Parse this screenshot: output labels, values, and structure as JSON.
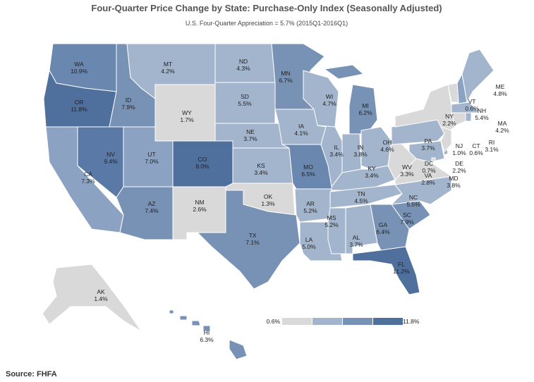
{
  "header": {
    "title": "Four-Quarter Price Change by State: Purchase-Only Index (Seasonally Adjusted)",
    "subtitle": "U.S. Four-Quarter Appreciation = 5.7% (2015Q1-2016Q1)"
  },
  "states": [
    {
      "abbr": "WA",
      "change": "10.9%",
      "color": "#6a87b0"
    },
    {
      "abbr": "OR",
      "change": "11.8%",
      "color": "#4f6f9c"
    },
    {
      "abbr": "CA",
      "change": "7.3%",
      "color": "#8ba2c2"
    },
    {
      "abbr": "NV",
      "change": "9.4%",
      "color": "#5a79a6"
    },
    {
      "abbr": "ID",
      "change": "7.9%",
      "color": "#7892b5"
    },
    {
      "abbr": "MT",
      "change": "4.2%",
      "color": "#a3b5cc"
    },
    {
      "abbr": "WY",
      "change": "1.7%",
      "color": "#d9d9d9"
    },
    {
      "abbr": "UT",
      "change": "7.0%",
      "color": "#8ba2c2"
    },
    {
      "abbr": "CO",
      "change": "8.0%",
      "color": "#4f6f9c"
    },
    {
      "abbr": "AZ",
      "change": "7.4%",
      "color": "#7892b5"
    },
    {
      "abbr": "NM",
      "change": "2.6%",
      "color": "#d9d9d9"
    },
    {
      "abbr": "ND",
      "change": "4.3%",
      "color": "#a3b5cc"
    },
    {
      "abbr": "SD",
      "change": "5.5%",
      "color": "#a3b5cc"
    },
    {
      "abbr": "NE",
      "change": "3.7%",
      "color": "#a3b5cc"
    },
    {
      "abbr": "KS",
      "change": "3.4%",
      "color": "#a3b5cc"
    },
    {
      "abbr": "OK",
      "change": "1.3%",
      "color": "#d9d9d9"
    },
    {
      "abbr": "TX",
      "change": "7.1%",
      "color": "#7892b5"
    },
    {
      "abbr": "MN",
      "change": "6.7%",
      "color": "#7892b5"
    },
    {
      "abbr": "IA",
      "change": "4.1%",
      "color": "#a3b5cc"
    },
    {
      "abbr": "MO",
      "change": "6.5%",
      "color": "#6a87b0"
    },
    {
      "abbr": "AR",
      "change": "5.2%",
      "color": "#a3b5cc"
    },
    {
      "abbr": "LA",
      "change": "5.0%",
      "color": "#a3b5cc"
    },
    {
      "abbr": "WI",
      "change": "4.7%",
      "color": "#a3b5cc"
    },
    {
      "abbr": "MI",
      "change": "6.2%",
      "color": "#7892b5"
    },
    {
      "abbr": "IL",
      "change": "3.4%",
      "color": "#a3b5cc"
    },
    {
      "abbr": "IN",
      "change": "3.8%",
      "color": "#a3b5cc"
    },
    {
      "abbr": "OH",
      "change": "4.6%",
      "color": "#a3b5cc"
    },
    {
      "abbr": "KY",
      "change": "3.4%",
      "color": "#a3b5cc"
    },
    {
      "abbr": "TN",
      "change": "4.5%",
      "color": "#a3b5cc"
    },
    {
      "abbr": "MS",
      "change": "5.2%",
      "color": "#a3b5cc"
    },
    {
      "abbr": "AL",
      "change": "3.7%",
      "color": "#a3b5cc"
    },
    {
      "abbr": "GA",
      "change": "6.4%",
      "color": "#7892b5"
    },
    {
      "abbr": "FL",
      "change": "11.2%",
      "color": "#4f6f9c"
    },
    {
      "abbr": "SC",
      "change": "7.9%",
      "color": "#7892b5"
    },
    {
      "abbr": "NC",
      "change": "5.5%",
      "color": "#a3b5cc"
    },
    {
      "abbr": "VA",
      "change": "2.8%",
      "color": "#d9d9d9"
    },
    {
      "abbr": "WV",
      "change": "3.3%",
      "color": "#d9d9d9"
    },
    {
      "abbr": "PA",
      "change": "3.7%",
      "color": "#a3b5cc"
    },
    {
      "abbr": "NY",
      "change": "2.2%",
      "color": "#d9d9d9"
    },
    {
      "abbr": "MD",
      "change": "3.8%",
      "color": "#a3b5cc"
    },
    {
      "abbr": "DE",
      "change": "2.2%",
      "color": "#a3b5cc"
    },
    {
      "abbr": "NJ",
      "change": "1.0%",
      "color": "#d9d9d9"
    },
    {
      "abbr": "CT",
      "change": "0.6%",
      "color": "#d9d9d9"
    },
    {
      "abbr": "RI",
      "change": "3.1%",
      "color": "#a3b5cc"
    },
    {
      "abbr": "MA",
      "change": "4.2%",
      "color": "#a3b5cc"
    },
    {
      "abbr": "NH",
      "change": "5.4%",
      "color": "#8ba2c2"
    },
    {
      "abbr": "VT",
      "change": "0.6%",
      "color": "#d9d9d9"
    },
    {
      "abbr": "ME",
      "change": "4.8%",
      "color": "#a3b5cc"
    },
    {
      "abbr": "DC",
      "change": "0.7%",
      "color": "#d9d9d9"
    },
    {
      "abbr": "AK",
      "change": "1.4%",
      "color": "#d9d9d9"
    },
    {
      "abbr": "HI",
      "change": "6.3%",
      "color": "#7892b5"
    }
  ],
  "legend": {
    "min": "0.6%",
    "max": "11.8%",
    "colors": [
      "#d9d9d9",
      "#a3b5cc",
      "#7892b5",
      "#4f6f9c"
    ]
  },
  "source": "Source: FHFA"
}
